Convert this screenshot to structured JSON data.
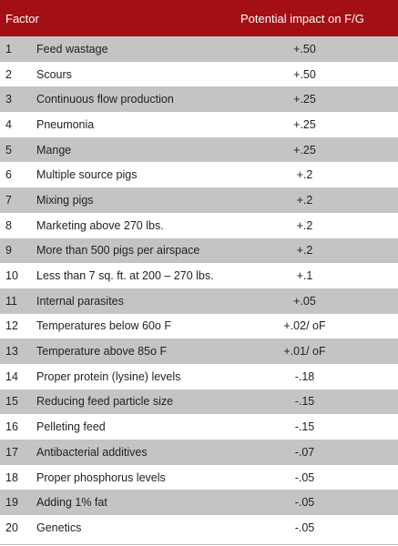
{
  "header": {
    "factor_label": "Factor",
    "impact_label": "Potential impact on F/G",
    "color": "#a30f12"
  },
  "rows": [
    {
      "num": "1",
      "factor": "Feed wastage",
      "impact": "+.50"
    },
    {
      "num": "2",
      "factor": "Scours",
      "impact": "+.50"
    },
    {
      "num": "3",
      "factor": "Continuous flow production",
      "impact": "+.25"
    },
    {
      "num": "4",
      "factor": "Pneumonia",
      "impact": "+.25"
    },
    {
      "num": "5",
      "factor": "Mange",
      "impact": "+.25"
    },
    {
      "num": "6",
      "factor": "Multiple source pigs",
      "impact": "+.2"
    },
    {
      "num": "7",
      "factor": "Mixing pigs",
      "impact": "+.2"
    },
    {
      "num": "8",
      "factor": "Marketing above 270 lbs.",
      "impact": "+.2"
    },
    {
      "num": "9",
      "factor": "More than 500 pigs per airspace",
      "impact": "+.2"
    },
    {
      "num": "10",
      "factor": "Less than 7 sq. ft. at 200 – 270 lbs.",
      "impact": "+.1"
    },
    {
      "num": "11",
      "factor": "Internal parasites",
      "impact": "+.05"
    },
    {
      "num": "12",
      "factor": "Temperatures below 60o F",
      "impact": "+.02/ oF"
    },
    {
      "num": "13",
      "factor": "Temperature above 85o F",
      "impact": "+.01/ oF"
    },
    {
      "num": "14",
      "factor": "Proper protein (lysine) levels",
      "impact": "-.18"
    },
    {
      "num": "15",
      "factor": "Reducing feed particle size",
      "impact": "-.15"
    },
    {
      "num": "16",
      "factor": "Pelleting feed",
      "impact": "-.15"
    },
    {
      "num": "17",
      "factor": "Antibacterial additives",
      "impact": "-.07"
    },
    {
      "num": "18",
      "factor": "Proper phosphorus levels",
      "impact": "-.05"
    },
    {
      "num": "19",
      "factor": "Adding 1% fat",
      "impact": "-.05"
    },
    {
      "num": "20",
      "factor": "Genetics",
      "impact": "-.05"
    }
  ]
}
